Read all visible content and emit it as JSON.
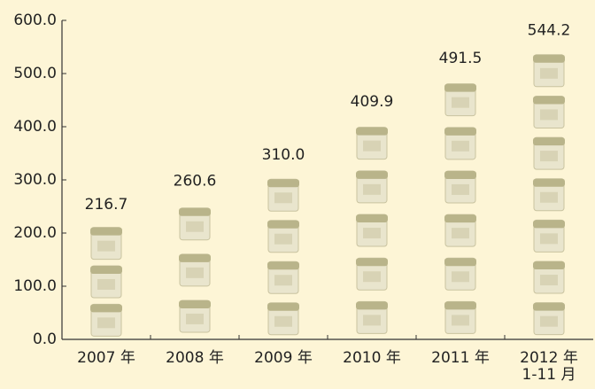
{
  "chart_data": {
    "type": "pictograph",
    "categories": [
      "2007 年",
      "2008 年",
      "2009 年",
      "2010 年",
      "2011 年",
      "2012 年\n1-11 月"
    ],
    "values": [
      216.7,
      260.6,
      310.0,
      409.9,
      491.5,
      544.2
    ],
    "value_labels": [
      "216.7",
      "260.6",
      "310.0",
      "409.9",
      "491.5",
      "544.2"
    ],
    "ylim": [
      0,
      600
    ],
    "yticks": [
      {
        "value": 0,
        "label": "0.0"
      },
      {
        "value": 100,
        "label": "100.0"
      },
      {
        "value": 200,
        "label": "200.0"
      },
      {
        "value": 300,
        "label": "300.0"
      },
      {
        "value": 400,
        "label": "400.0"
      },
      {
        "value": 500,
        "label": "500.0"
      },
      {
        "value": 600,
        "label": "600.0"
      }
    ],
    "color": "#b9b48a"
  }
}
